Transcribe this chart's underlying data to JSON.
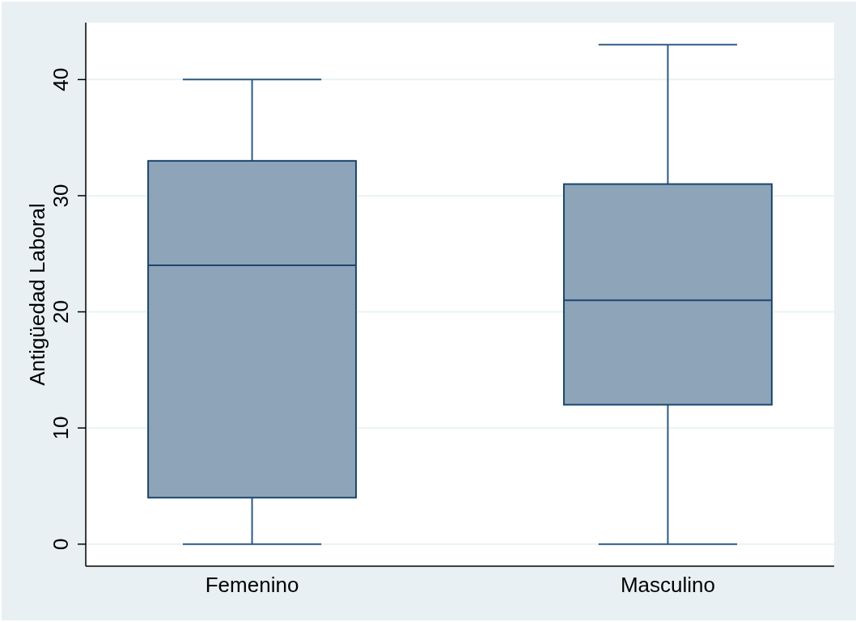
{
  "chart_data": {
    "type": "box",
    "ylabel": "Antigüedad Laboral",
    "categories": [
      "Femenino",
      "Masculino"
    ],
    "boxes": [
      {
        "low": 0,
        "q1": 4,
        "median": 24,
        "q3": 33,
        "high": 40
      },
      {
        "low": 0,
        "q1": 12,
        "median": 21,
        "q3": 31,
        "high": 43
      }
    ],
    "color": "#8ea4b8",
    "ylim": [
      -1.9,
      44.9
    ],
    "yticks": [
      0,
      10,
      20,
      30,
      40
    ],
    "grid": "y"
  }
}
